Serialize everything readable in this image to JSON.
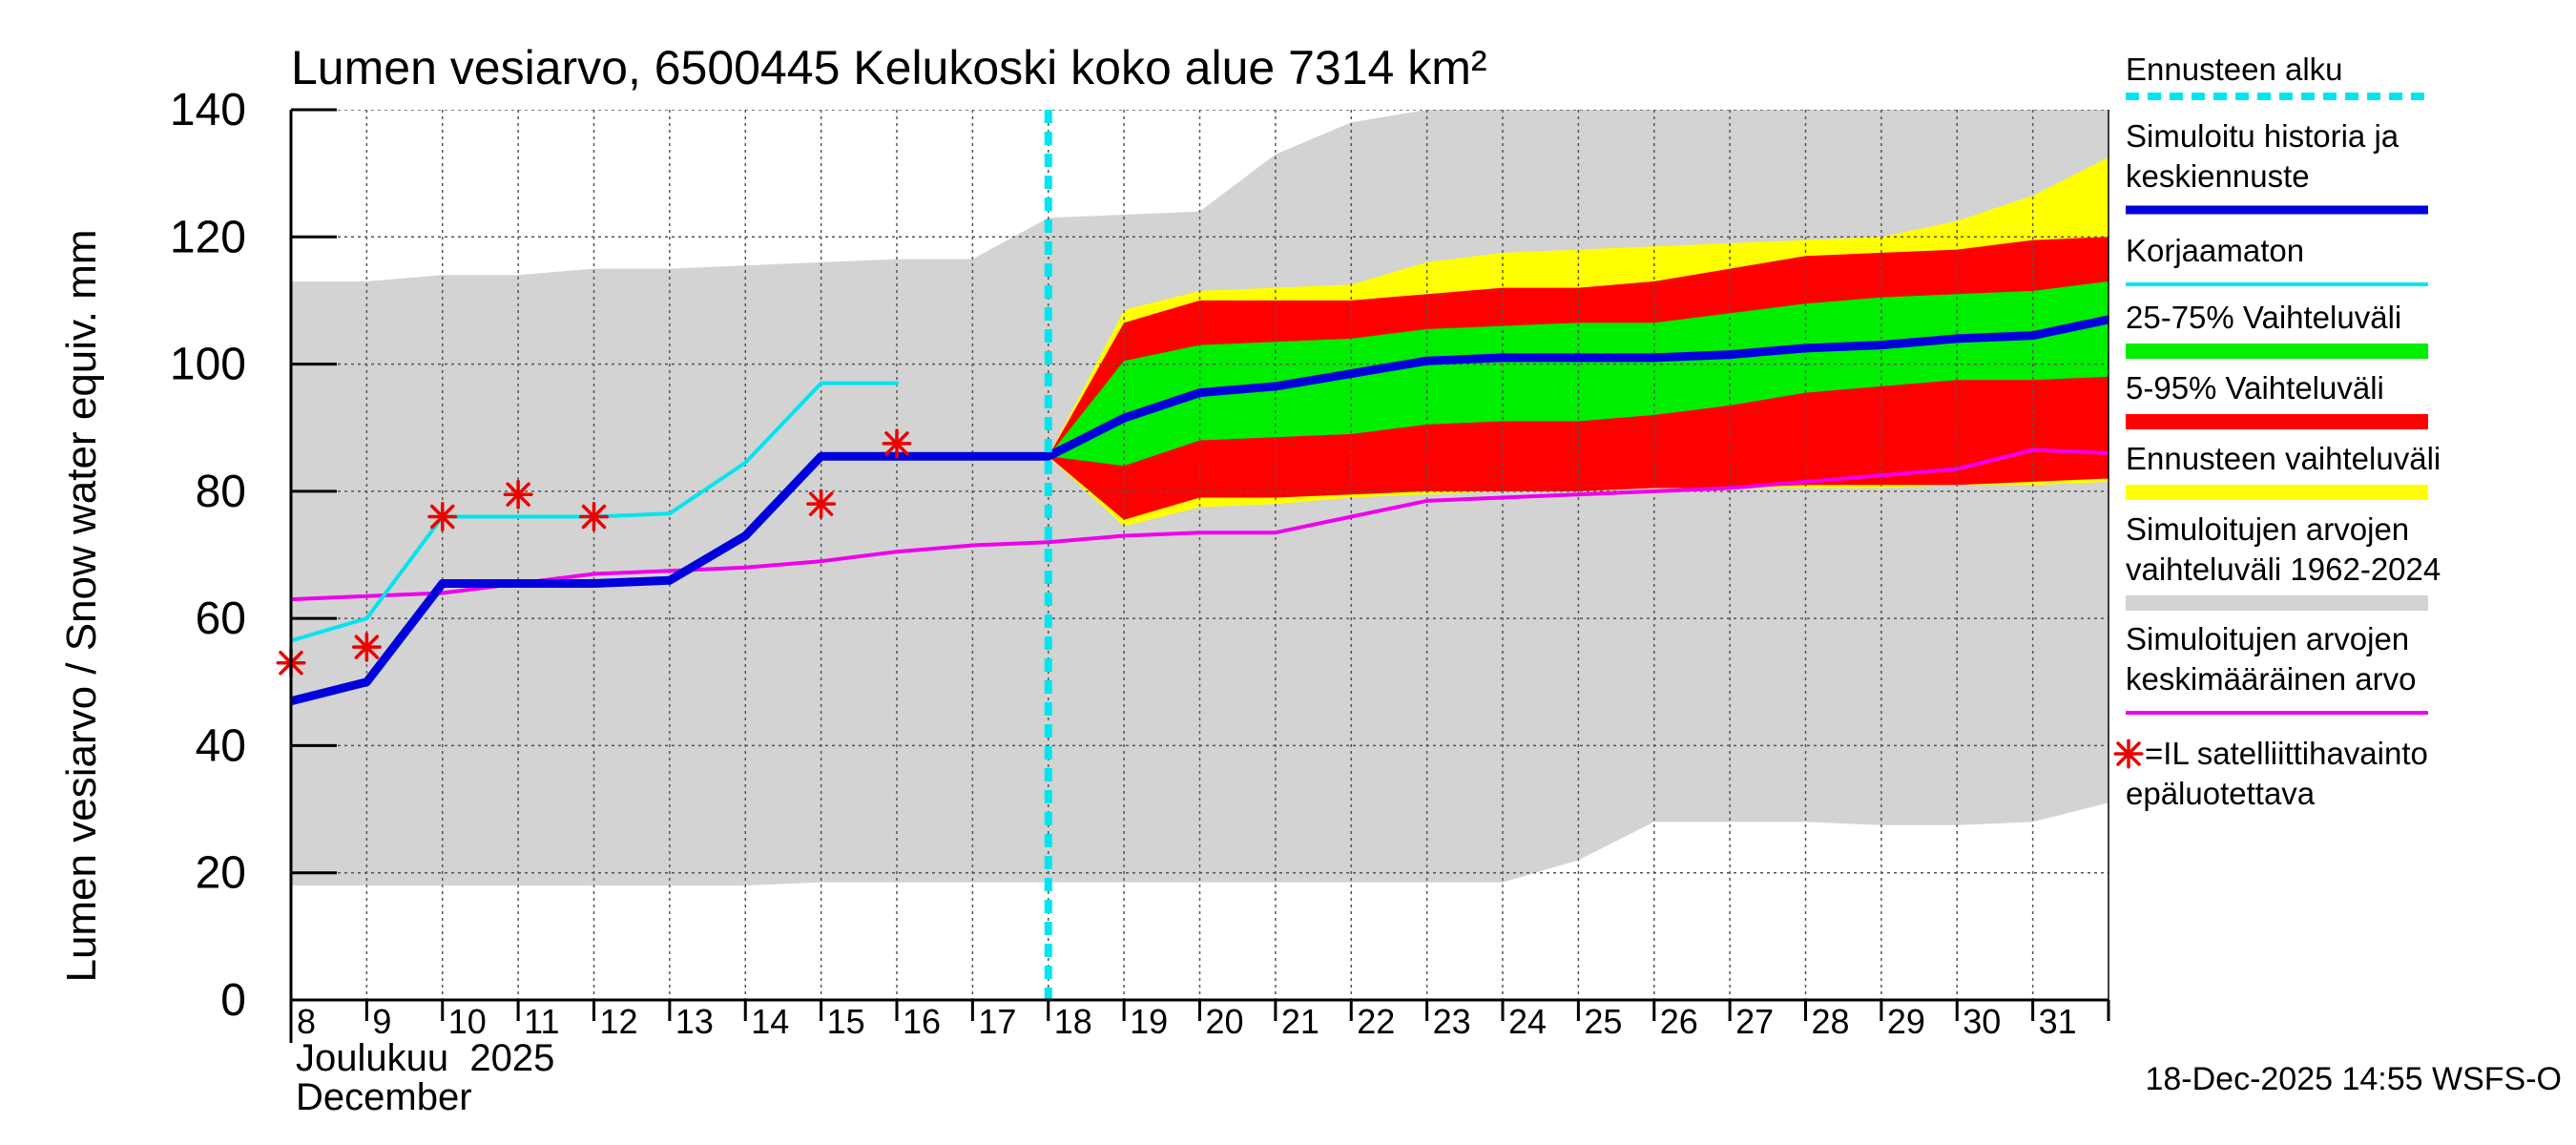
{
  "chart_data": {
    "type": "area",
    "title": "Lumen vesiarvo, 6500445 Kelukoski koko alue 7314 km²",
    "ylabel": "Lumen vesiarvo / Snow water equiv.    mm",
    "ylim": [
      0,
      140
    ],
    "yticks": [
      0,
      20,
      40,
      60,
      80,
      100,
      120,
      140
    ],
    "xlim": [
      8,
      32
    ],
    "x_days": [
      8,
      9,
      10,
      11,
      12,
      13,
      14,
      15,
      16,
      17,
      18,
      19,
      20,
      21,
      22,
      23,
      24,
      25,
      26,
      27,
      28,
      29,
      30,
      31
    ],
    "x_tick_labels": [
      "8",
      "9",
      "10",
      "11",
      "12",
      "13",
      "14",
      "15",
      "16",
      "17",
      "18",
      "19",
      "20",
      "21",
      "22",
      "23",
      "24",
      "25",
      "26",
      "27",
      "28",
      "29",
      "30",
      "31"
    ],
    "xlabel_line1": "Joulukuu  2025",
    "xlabel_line2": "December",
    "forecast_start_x": 18,
    "footer": "18-Dec-2025 14:55 WSFS-O",
    "grid": true,
    "colors": {
      "hist_range": "#d3d3d3",
      "forecast_range": "#ffff00",
      "p5_95": "#ff0000",
      "p25_75": "#00ee00",
      "simulated": "#0000dd",
      "uncorrected": "#00e5ee",
      "mean": "#ee00ee",
      "satellite": "#ee0000",
      "forecast_start": "#00e5ee"
    },
    "hist_range": {
      "x": [
        8,
        9,
        10,
        11,
        12,
        13,
        14,
        15,
        16,
        17,
        18,
        19,
        20,
        21,
        22,
        23,
        24,
        25,
        26,
        27,
        28,
        29,
        30,
        31,
        32
      ],
      "upper": [
        113,
        113,
        114,
        114,
        115,
        115,
        115.5,
        116,
        116.5,
        116.5,
        123,
        123.5,
        124,
        133,
        138,
        140,
        140,
        140,
        140,
        140,
        140,
        140,
        140,
        140,
        140
      ],
      "lower": [
        18,
        18,
        18,
        18,
        18,
        18,
        18,
        18.5,
        18.5,
        18.5,
        18.5,
        18.5,
        18.5,
        18.5,
        18.5,
        18.5,
        18.5,
        22,
        28,
        28,
        28,
        27.5,
        27.5,
        28,
        31
      ]
    },
    "forecast_range": {
      "x": [
        18,
        19,
        20,
        21,
        22,
        23,
        24,
        25,
        26,
        27,
        28,
        29,
        30,
        31,
        32
      ],
      "upper": [
        85.5,
        108.5,
        111.5,
        112,
        112.5,
        116,
        117.5,
        118,
        118.5,
        119,
        119.5,
        120,
        122.5,
        126.5,
        132.5
      ],
      "lower": [
        85.5,
        74.5,
        77.5,
        78,
        79,
        79.5,
        80,
        80,
        80.5,
        80.5,
        80.5,
        80.5,
        81,
        81,
        81.5
      ]
    },
    "p5_95": {
      "x": [
        18,
        19,
        20,
        21,
        22,
        23,
        24,
        25,
        26,
        27,
        28,
        29,
        30,
        31,
        32
      ],
      "upper": [
        85.5,
        106.5,
        110,
        110,
        110,
        111,
        112,
        112,
        113,
        115,
        117,
        117.5,
        118,
        119.5,
        120
      ],
      "lower": [
        85.5,
        75.5,
        79,
        79,
        79.5,
        80,
        80,
        80,
        80.5,
        80.5,
        81,
        81,
        81,
        81.5,
        82
      ]
    },
    "p25_75": {
      "x": [
        18,
        19,
        20,
        21,
        22,
        23,
        24,
        25,
        26,
        27,
        28,
        29,
        30,
        31,
        32
      ],
      "upper": [
        85.5,
        100.5,
        103,
        103.5,
        104,
        105.5,
        106,
        106.5,
        106.5,
        108,
        109.5,
        110.5,
        111,
        111.5,
        113
      ],
      "lower": [
        85.5,
        84,
        88,
        88.5,
        89,
        90.5,
        91,
        91,
        92,
        93.5,
        95.5,
        96.5,
        97.5,
        97.5,
        98
      ]
    },
    "simulated": {
      "x": [
        8,
        9,
        10,
        11,
        12,
        13,
        14,
        15,
        16,
        17,
        18,
        19,
        20,
        21,
        22,
        23,
        24,
        25,
        26,
        27,
        28,
        29,
        30,
        31,
        32
      ],
      "y": [
        47,
        50,
        65.5,
        65.5,
        65.5,
        66,
        73,
        85.5,
        85.5,
        85.5,
        85.5,
        91.5,
        95.5,
        96.5,
        98.5,
        100.5,
        101,
        101,
        101,
        101.5,
        102.5,
        103,
        104,
        104.5,
        107
      ]
    },
    "uncorrected": {
      "x": [
        8,
        9,
        10,
        11,
        12,
        13,
        14,
        15,
        16
      ],
      "y": [
        56.5,
        60,
        76,
        76,
        76,
        76.5,
        84.5,
        97,
        97
      ]
    },
    "mean": {
      "x": [
        8,
        9,
        10,
        11,
        12,
        13,
        14,
        15,
        16,
        17,
        18,
        19,
        20,
        21,
        22,
        23,
        24,
        25,
        26,
        27,
        28,
        29,
        30,
        31,
        32
      ],
      "y": [
        63,
        63.5,
        64,
        65.5,
        67,
        67.5,
        68,
        69,
        70.5,
        71.5,
        72,
        73,
        73.5,
        73.5,
        76,
        78.5,
        79,
        79.5,
        80,
        80.5,
        81.5,
        82.5,
        83.5,
        86.5,
        86
      ]
    },
    "satellite": {
      "x": [
        8,
        9,
        10,
        11,
        12,
        15,
        16
      ],
      "y": [
        53,
        55.5,
        76,
        79.5,
        76,
        78,
        87.5
      ]
    },
    "legend": [
      {
        "label_lines": [
          "Ennusteen alku"
        ],
        "style": "dashed",
        "color": "#00e5ee"
      },
      {
        "label_lines": [
          "Simuloitu historia ja",
          "keskiennuste"
        ],
        "style": "thick",
        "color": "#0000dd"
      },
      {
        "label_lines": [
          "Korjaamaton"
        ],
        "style": "line",
        "color": "#00e5ee"
      },
      {
        "label_lines": [
          "25-75% Vaihteluväli"
        ],
        "style": "band",
        "color": "#00ee00"
      },
      {
        "label_lines": [
          "5-95% Vaihteluväli"
        ],
        "style": "band",
        "color": "#ff0000"
      },
      {
        "label_lines": [
          "Ennusteen vaihteluväli"
        ],
        "style": "band",
        "color": "#ffff00"
      },
      {
        "label_lines": [
          "Simuloitujen arvojen",
          "vaihteluväli 1962-2024"
        ],
        "style": "band",
        "color": "#d3d3d3"
      },
      {
        "label_lines": [
          "Simuloitujen arvojen",
          "keskimääräinen arvo"
        ],
        "style": "line",
        "color": "#ee00ee"
      },
      {
        "label_lines": [
          "=IL satelliittihavainto",
          "epäluotettava"
        ],
        "style": "star",
        "color": "#ee0000"
      }
    ]
  }
}
